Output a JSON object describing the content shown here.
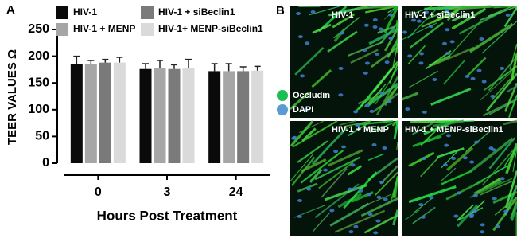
{
  "chart_data": {
    "type": "bar",
    "panel_label": "A",
    "y_label": "TEER VALUES Ω",
    "x_label": "Hours Post Treatment",
    "categories": [
      "0",
      "3",
      "24"
    ],
    "series": [
      {
        "name": "HIV-1",
        "color": "#0a0a0a",
        "values": [
          186,
          176,
          172
        ],
        "errors": [
          14,
          10,
          14
        ]
      },
      {
        "name": "HIV-1 + MENP",
        "color": "#a6a6a6",
        "values": [
          186,
          177,
          172
        ],
        "errors": [
          6,
          15,
          14
        ]
      },
      {
        "name": "HIV-1 + siBeclin1",
        "color": "#7a7a7a",
        "values": [
          188,
          176,
          172
        ],
        "errors": [
          6,
          8,
          8
        ]
      },
      {
        "name": "HIV-1+ MENP-siBeclin1",
        "color": "#dadada",
        "values": [
          188,
          178,
          173
        ],
        "errors": [
          10,
          16,
          8
        ]
      }
    ],
    "ylim": [
      0,
      250
    ],
    "yticks": [
      0,
      50,
      100,
      150,
      200,
      250
    ]
  },
  "micrographs": {
    "panel_label": "B",
    "labels": [
      "HIV-1",
      "HIV-1 + siBeclin1",
      "HIV-1 + MENP",
      "HIV-1 + MENP-siBeclin1"
    ],
    "legend": [
      {
        "name": "Occludin",
        "color": "#1dbf55"
      },
      {
        "name": "DAPI",
        "color": "#5b9bd5"
      }
    ]
  }
}
